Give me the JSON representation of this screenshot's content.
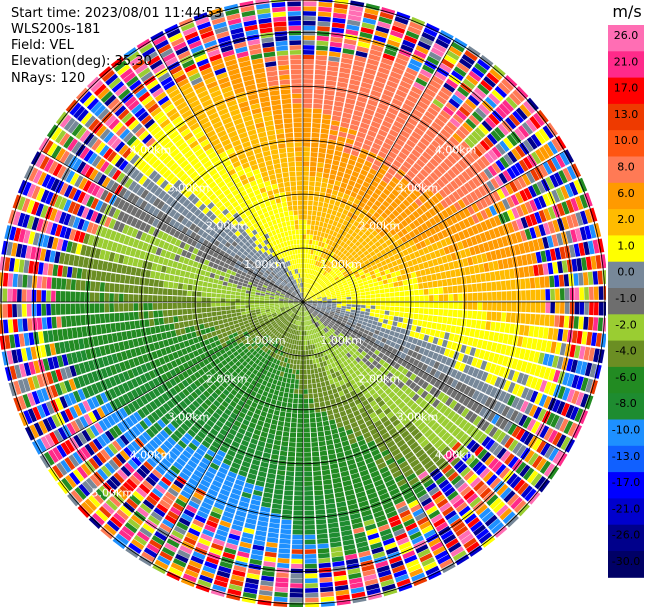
{
  "header": {
    "start_time": "Start time: 2023/08/01 11:44:53",
    "instrument": "WLS200s-181",
    "field": "Field: VEL",
    "elevation": "Elevation(deg): 35.30",
    "nrays": "NRays: 120"
  },
  "chart_data": {
    "type": "heatmap",
    "projection": "polar-ppi",
    "field": "VEL",
    "n_rays": 120,
    "range_ring_labels": [
      "1.00km",
      "2.00km",
      "3.00km",
      "4.00km",
      "5.00km"
    ],
    "range_rings_km": [
      1,
      2,
      3,
      4,
      5
    ],
    "max_range_km": 5.6,
    "spoke_azimuths_deg": [
      0,
      30,
      60,
      90,
      120,
      150,
      180,
      210,
      240,
      270,
      300,
      330
    ],
    "wind_pattern": {
      "from_direction_deg": 210,
      "max_speed_ms": 10,
      "speed_growth": "increasing with range"
    }
  },
  "colorbar": {
    "unit": "m/s",
    "tick_labels": [
      "26.0",
      "21.0",
      "17.0",
      "13.0",
      "10.0",
      "8.0",
      "6.0",
      "2.0",
      "1.0",
      "0.0",
      "-1.0",
      "-2.0",
      "-4.0",
      "-6.0",
      "-8.0",
      "-10.0",
      "-13.0",
      "-17.0",
      "-21.0",
      "-26.0",
      "-30.0"
    ],
    "colors": [
      "#ff6eb4",
      "#ff2a8a",
      "#ff0000",
      "#ee3a00",
      "#ff5511",
      "#ff7a55",
      "#ff9a00",
      "#ffbb00",
      "#ffff00",
      "#778899",
      "#6e6e6e",
      "#9acd32",
      "#6b8e23",
      "#228b22",
      "#1e8c30",
      "#1e90ff",
      "#1060ff",
      "#0000ff",
      "#0000cd",
      "#00008b",
      "#000066"
    ]
  }
}
